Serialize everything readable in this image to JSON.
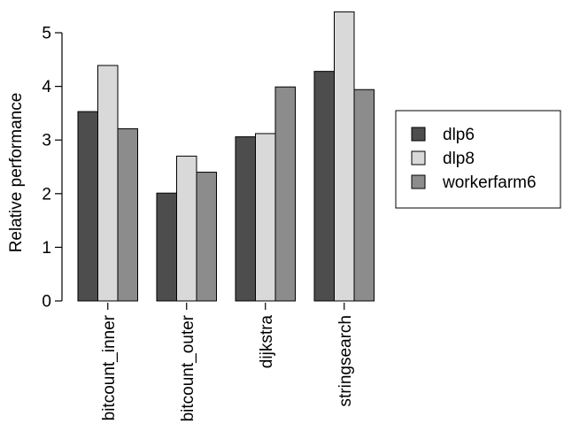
{
  "chart_data": {
    "type": "bar",
    "title": "",
    "xlabel": "",
    "ylabel": "Relative performance",
    "ylim": [
      0,
      5
    ],
    "yticks": [
      0,
      1,
      2,
      3,
      4,
      5
    ],
    "grid": false,
    "legend_position": "right",
    "categories": [
      "bitcount_inner",
      "bitcount_outer",
      "dijkstra",
      "stringsearch"
    ],
    "series": [
      {
        "name": "dlp6",
        "color": "#4d4d4d",
        "values": [
          3.53,
          2.01,
          3.06,
          4.28
        ]
      },
      {
        "name": "dlp8",
        "color": "#d9d9d9",
        "values": [
          4.39,
          2.7,
          3.12,
          5.39
        ]
      },
      {
        "name": "workerfarm6",
        "color": "#8c8c8c",
        "values": [
          3.21,
          2.4,
          3.99,
          3.94
        ]
      }
    ]
  }
}
